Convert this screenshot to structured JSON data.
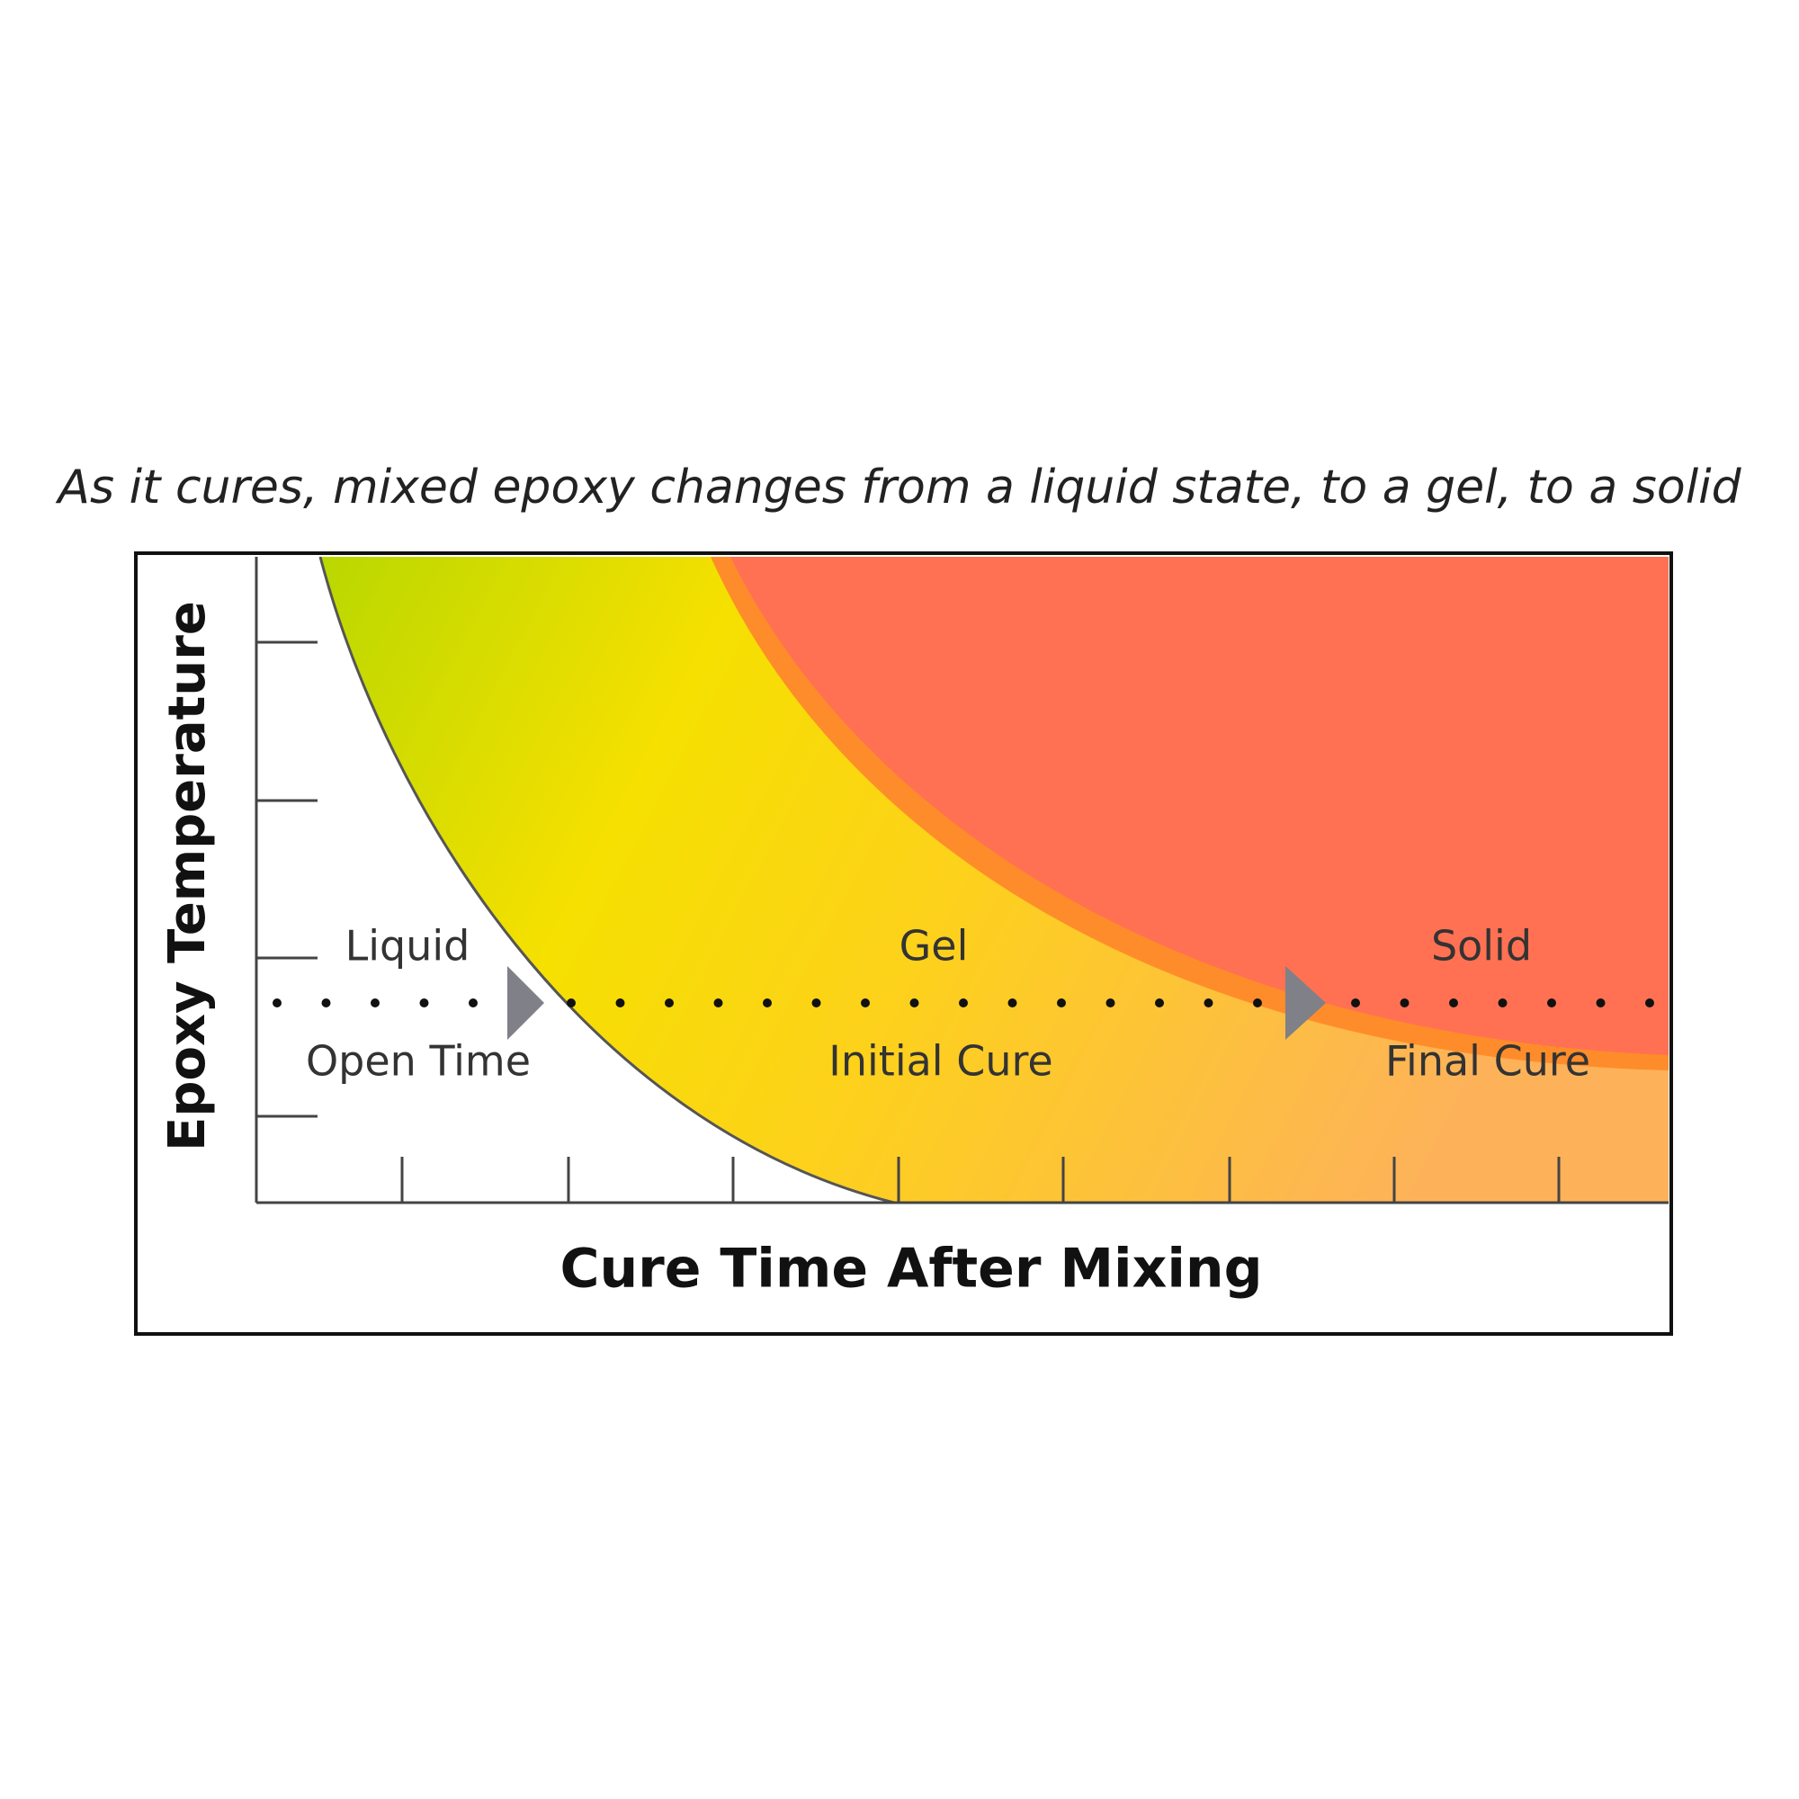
{
  "title": "As it cures, mixed epoxy changes from a liquid state, to a gel, to a solid",
  "axes": {
    "y_label": "Epoxy Temperature",
    "x_label": "Cure Time After Mixing"
  },
  "states": [
    "Liquid",
    "Gel",
    "Solid"
  ],
  "phases": [
    "Open Time",
    "Initial Cure",
    "Final Cure"
  ]
}
